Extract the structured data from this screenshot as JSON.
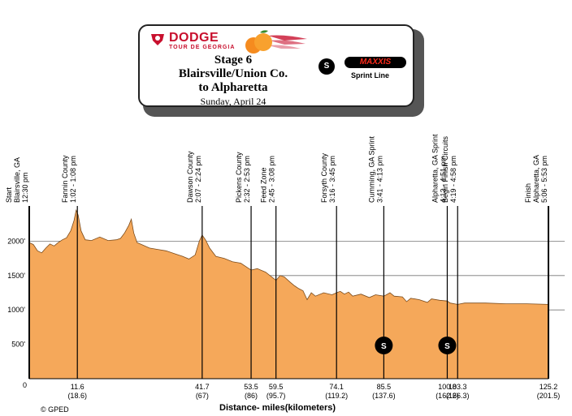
{
  "header": {
    "brand": "DODGE",
    "brand_sub": "TOUR DE GEORGIA",
    "stage": "Stage 6",
    "route_line1": "Blairsville/Union Co.",
    "route_line2": "to Alpharetta",
    "date": "Sunday, April 24",
    "sprint_icon": "S",
    "sponsor_logo": "MAXXIS",
    "sprint_label": "Sprint Line"
  },
  "footer": {
    "copyright": "© GPED",
    "x_axis_label": "Distance- miles(kilometers)"
  },
  "colors": {
    "profile_fill": "#f5a85a",
    "profile_stroke": "#7a4a1a",
    "line": "#000000",
    "grid": "#777777"
  },
  "chart_data": {
    "type": "area",
    "xlabel": "Distance- miles(kilometers)",
    "ylabel": "",
    "xlim": [
      0,
      125.2
    ],
    "ylim": [
      0,
      2500
    ],
    "y_ticks": [
      {
        "value": 500,
        "label": "500'"
      },
      {
        "value": 1000,
        "label": "1000'"
      },
      {
        "value": 1500,
        "label": "1500'"
      },
      {
        "value": 2000,
        "label": "2000'"
      }
    ],
    "zero_label": "0",
    "gridlines_y": [
      1000,
      1500,
      2000
    ],
    "profile": [
      [
        0,
        1980
      ],
      [
        1,
        1950
      ],
      [
        2,
        1860
      ],
      [
        3,
        1830
      ],
      [
        4,
        1900
      ],
      [
        5,
        1960
      ],
      [
        6,
        1930
      ],
      [
        7,
        1980
      ],
      [
        8,
        2020
      ],
      [
        9,
        2050
      ],
      [
        10,
        2150
      ],
      [
        10.8,
        2300
      ],
      [
        11.3,
        2450
      ],
      [
        11.8,
        2380
      ],
      [
        12.5,
        2150
      ],
      [
        13.5,
        2020
      ],
      [
        15,
        2010
      ],
      [
        17,
        2060
      ],
      [
        19,
        2010
      ],
      [
        21,
        2020
      ],
      [
        22,
        2040
      ],
      [
        23,
        2120
      ],
      [
        24,
        2230
      ],
      [
        24.6,
        2320
      ],
      [
        25.2,
        2120
      ],
      [
        26,
        1980
      ],
      [
        27.5,
        1940
      ],
      [
        29,
        1900
      ],
      [
        31,
        1880
      ],
      [
        33,
        1860
      ],
      [
        35,
        1820
      ],
      [
        37,
        1780
      ],
      [
        38.5,
        1740
      ],
      [
        40,
        1800
      ],
      [
        41,
        2000
      ],
      [
        41.7,
        2090
      ],
      [
        42.5,
        2020
      ],
      [
        43.5,
        1900
      ],
      [
        45,
        1780
      ],
      [
        47,
        1750
      ],
      [
        49,
        1700
      ],
      [
        51,
        1680
      ],
      [
        53,
        1600
      ],
      [
        53.5,
        1580
      ],
      [
        55,
        1600
      ],
      [
        57,
        1550
      ],
      [
        59.5,
        1430
      ],
      [
        60.5,
        1500
      ],
      [
        61.5,
        1480
      ],
      [
        63,
        1400
      ],
      [
        64,
        1350
      ],
      [
        65,
        1310
      ],
      [
        66,
        1280
      ],
      [
        67,
        1150
      ],
      [
        68,
        1250
      ],
      [
        69,
        1200
      ],
      [
        71,
        1250
      ],
      [
        73,
        1220
      ],
      [
        74.1,
        1250
      ],
      [
        75,
        1270
      ],
      [
        76,
        1230
      ],
      [
        77,
        1260
      ],
      [
        78,
        1200
      ],
      [
        80,
        1230
      ],
      [
        82,
        1180
      ],
      [
        83.5,
        1220
      ],
      [
        85.5,
        1200
      ],
      [
        87,
        1250
      ],
      [
        88,
        1200
      ],
      [
        90,
        1190
      ],
      [
        91,
        1120
      ],
      [
        92,
        1170
      ],
      [
        94,
        1150
      ],
      [
        96,
        1110
      ],
      [
        97,
        1160
      ],
      [
        99,
        1140
      ],
      [
        100.8,
        1130
      ],
      [
        101.5,
        1100
      ],
      [
        103.3,
        1080
      ],
      [
        105,
        1100
      ],
      [
        110,
        1100
      ],
      [
        115,
        1090
      ],
      [
        120,
        1090
      ],
      [
        125.2,
        1080
      ]
    ],
    "x_ticks": [
      {
        "miles": 0,
        "label": "0",
        "sub": ""
      },
      {
        "miles": 11.6,
        "label": "11.6",
        "sub": "(18.6)"
      },
      {
        "miles": 41.7,
        "label": "41.7",
        "sub": "(67)"
      },
      {
        "miles": 53.5,
        "label": "53.5",
        "sub": "(86)"
      },
      {
        "miles": 59.5,
        "label": "59.5",
        "sub": "(95.7)"
      },
      {
        "miles": 74.1,
        "label": "74.1",
        "sub": "(119.2)"
      },
      {
        "miles": 85.5,
        "label": "85.5",
        "sub": "(137.6)"
      },
      {
        "miles": 100.8,
        "label": "100.8",
        "sub": "(162.2)"
      },
      {
        "miles": 103.3,
        "label": "103.3",
        "sub": "(166.3)"
      },
      {
        "miles": 125.2,
        "label": "125.2",
        "sub": "(201.5)"
      }
    ],
    "markers": [
      {
        "miles": 0,
        "lines": [
          "Start",
          "Blairsville, GA",
          "12:30 pm"
        ]
      },
      {
        "miles": 11.6,
        "lines": [
          "Fannin County",
          "1:02 - 1:08 pm"
        ]
      },
      {
        "miles": 41.7,
        "lines": [
          "Dawson County",
          "2:07 - 2:24 pm"
        ]
      },
      {
        "miles": 53.5,
        "lines": [
          "Pickens County",
          "2:32 - 2:53 pm"
        ]
      },
      {
        "miles": 59.5,
        "lines": [
          "Feed Zone",
          "2:45 - 3:08 pm"
        ]
      },
      {
        "miles": 74.1,
        "lines": [
          "Forsyth County",
          "3:16 - 3:45 pm"
        ]
      },
      {
        "miles": 85.5,
        "lines": [
          "Cumming, GA Sprint",
          "3:41 - 4:13 pm"
        ],
        "sprint": true
      },
      {
        "miles": 100.8,
        "lines": [
          "Alpharetta, GA Sprint",
          "4:13 - 4:51 pm"
        ],
        "sprint": true
      },
      {
        "miles": 103.3,
        "lines": [
          "Begin Finish Circuits",
          "4:19 - 4:58 pm"
        ]
      },
      {
        "miles": 125.2,
        "lines": [
          "Finish",
          "Alpharetta, GA",
          "5:06 - 5:53 pm"
        ]
      }
    ],
    "sprint_symbol": "S"
  }
}
